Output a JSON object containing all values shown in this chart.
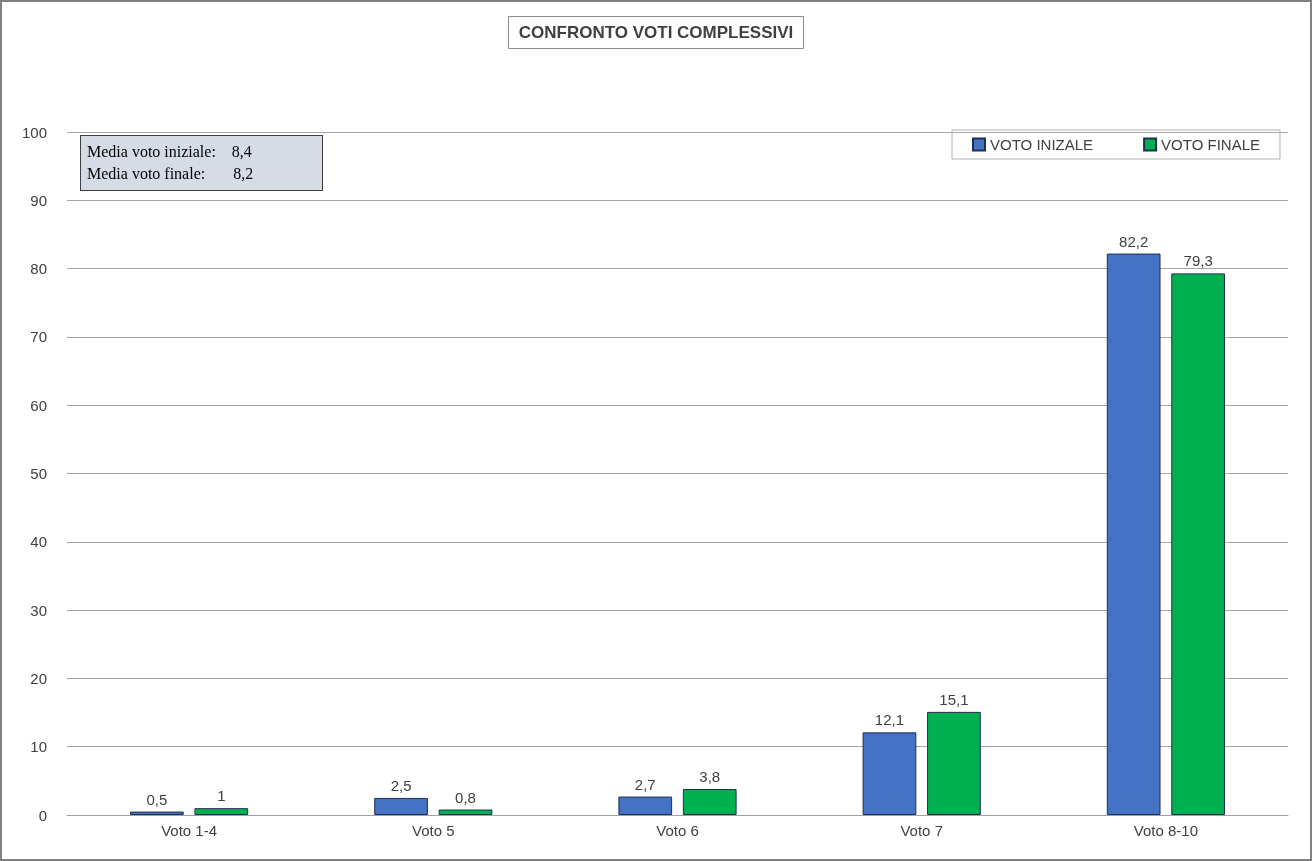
{
  "chart_data": {
    "type": "bar",
    "title": "CONFRONTO VOTI COMPLESSIVI",
    "categories": [
      "Voto 1-4",
      "Voto 5",
      "Voto 6",
      "Voto 7",
      "Voto 8-10"
    ],
    "series": [
      {
        "name": "VOTO INIZALE",
        "color": "#4472c4",
        "values": [
          0.5,
          2.5,
          2.7,
          12.1,
          82.2
        ],
        "value_labels": [
          "0,5",
          "2,5",
          "2,7",
          "12,1",
          "82,2"
        ]
      },
      {
        "name": "VOTO FINALE",
        "color": "#00b050",
        "values": [
          1,
          0.8,
          3.8,
          15.1,
          79.3
        ],
        "value_labels": [
          "1",
          "0,8",
          "3,8",
          "15,1",
          "79,3"
        ]
      }
    ],
    "ylim": [
      0,
      100
    ],
    "yticks": [
      0,
      10,
      20,
      30,
      40,
      50,
      60,
      70,
      80,
      90,
      100
    ],
    "grid": "y",
    "legend": "top right",
    "annotations": [
      "Media voto iniziale:    8,4",
      "Media voto finale:       8,2"
    ]
  }
}
